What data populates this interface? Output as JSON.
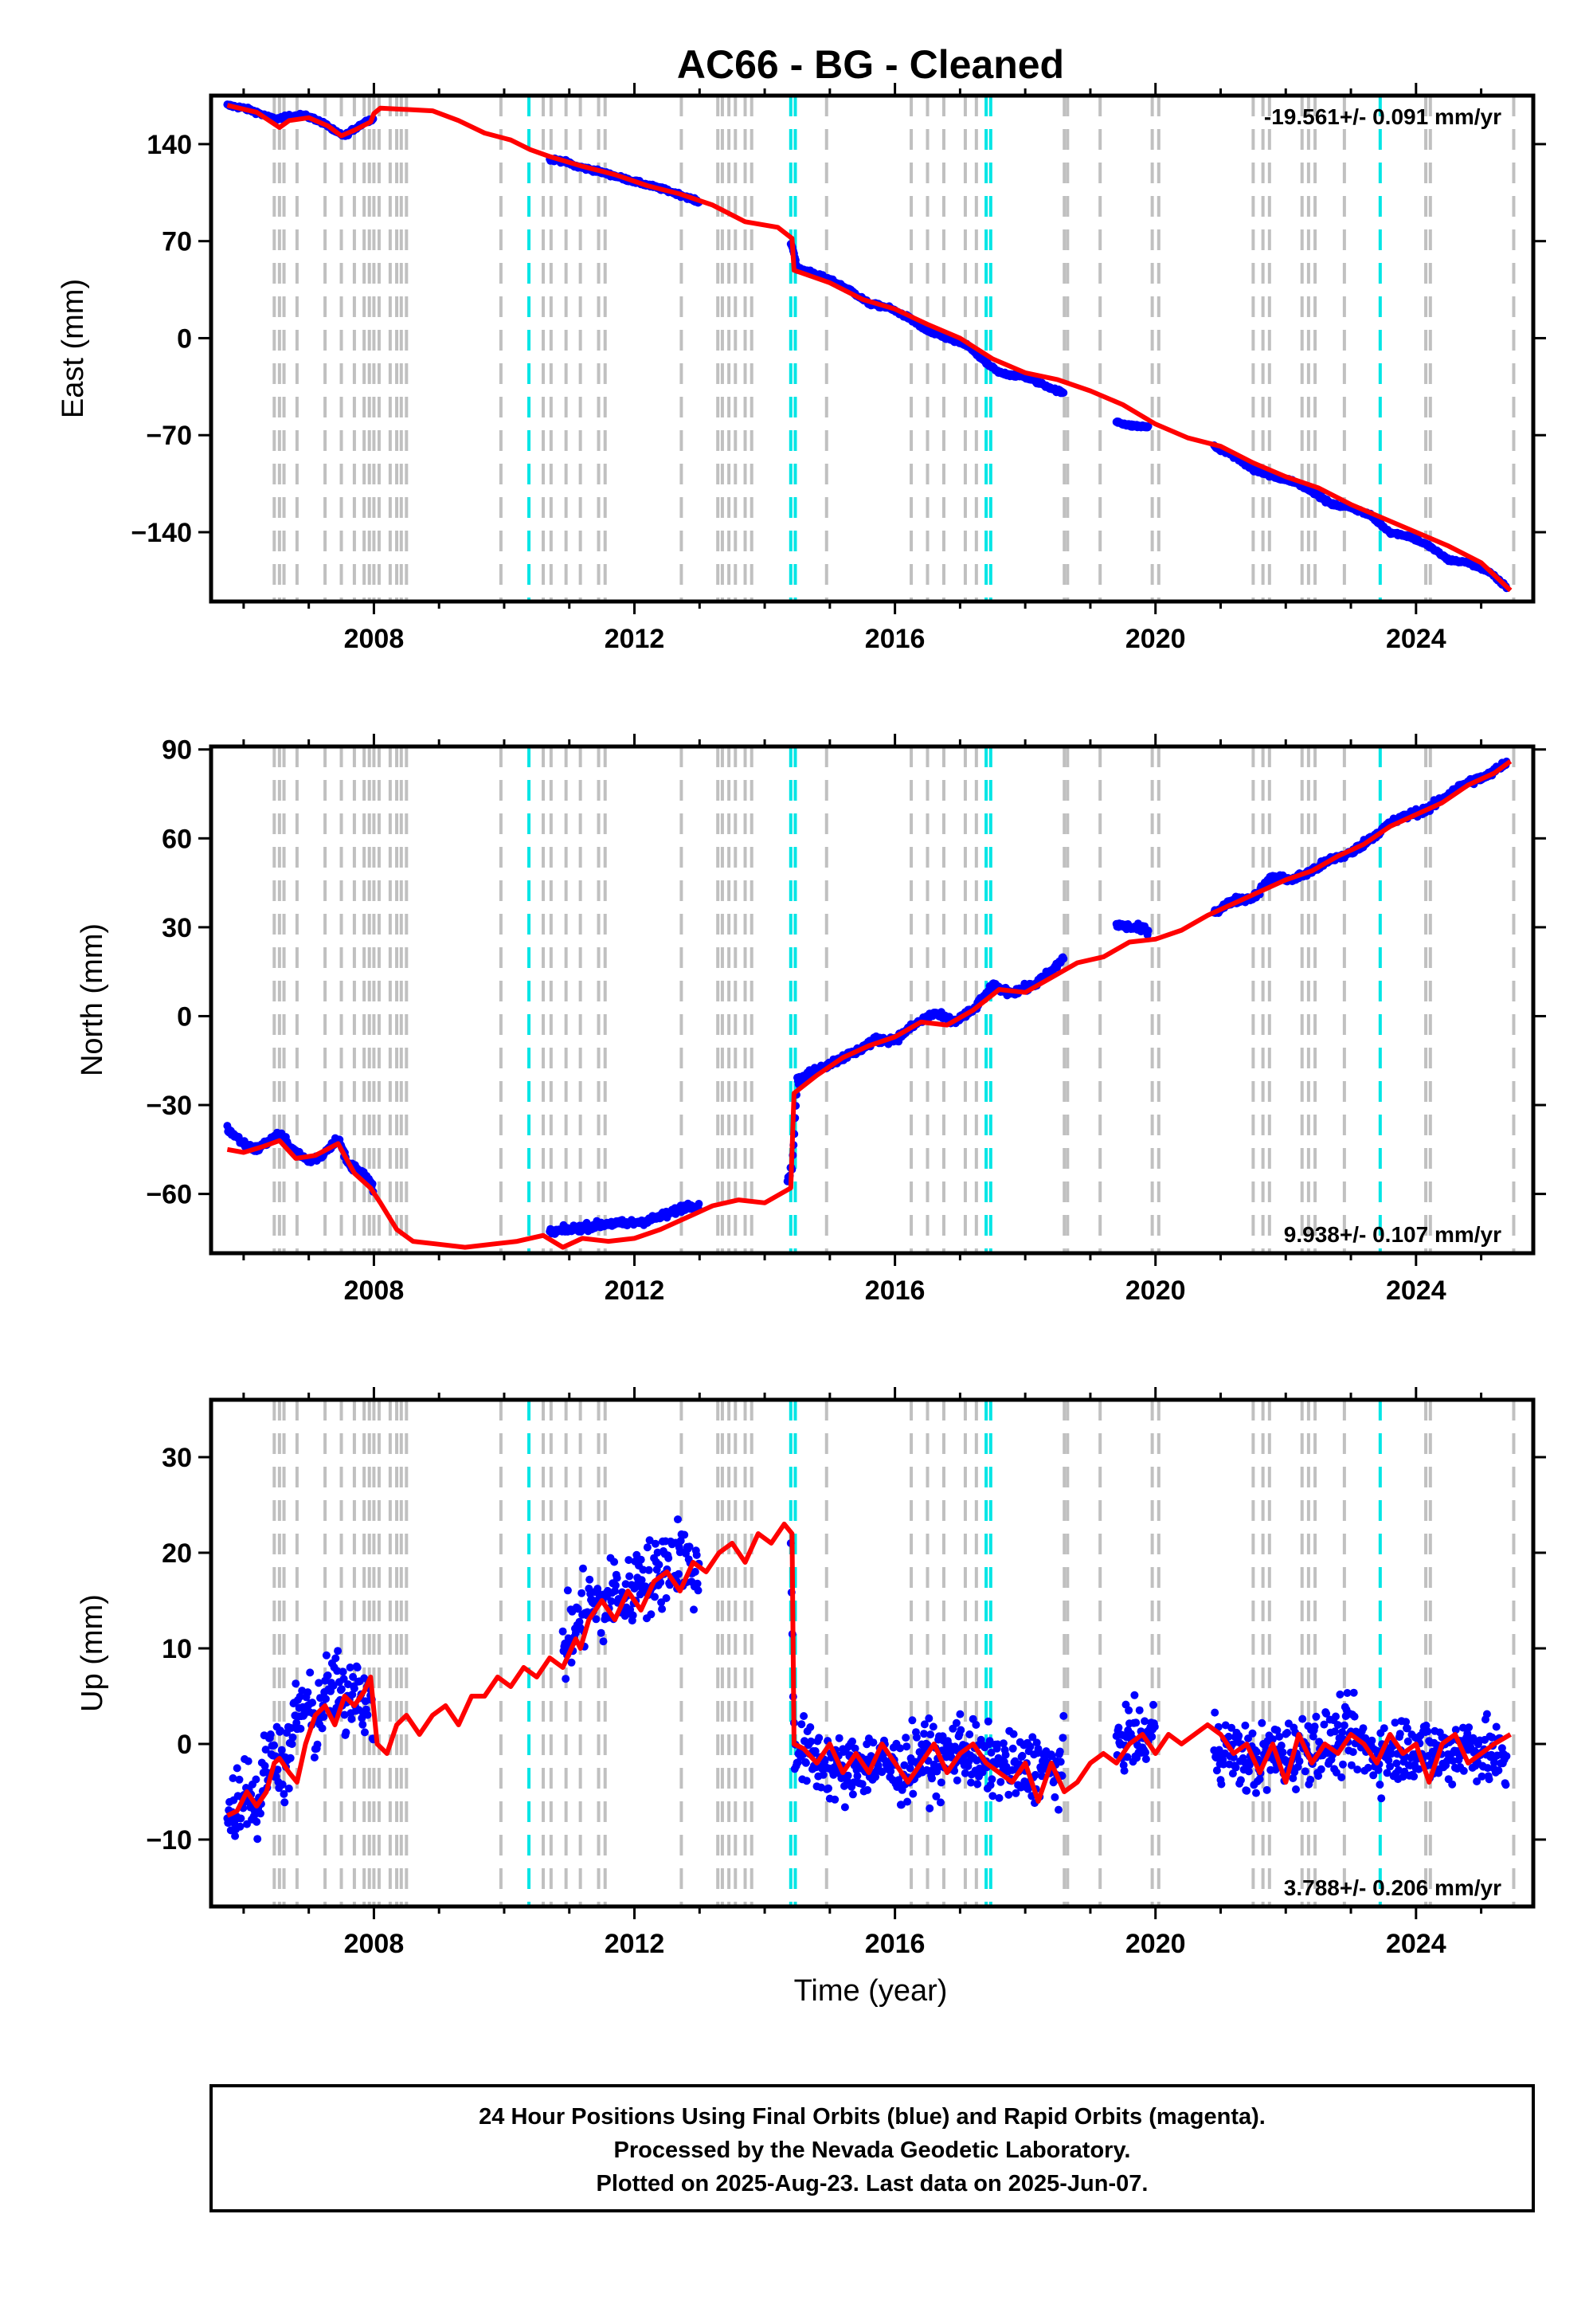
{
  "chart_data": {
    "type": "scatter",
    "title": "AC66  - BG - Cleaned",
    "xlabel": "Time (year)",
    "x_ticks": [
      "2008",
      "2012",
      "2016",
      "2020",
      "2024"
    ],
    "xlim": [
      2005.5,
      2025.8
    ],
    "colors": {
      "data": "#0000ff",
      "model": "#ff0000",
      "equipment_change": "#c0c0c0",
      "earthquake": "#00e5e5"
    },
    "equipment_change_lines": [
      2006.47,
      2006.55,
      2006.62,
      2006.82,
      2007.25,
      2007.5,
      2007.7,
      2007.85,
      2007.93,
      2008.0,
      2008.08,
      2008.25,
      2008.35,
      2008.42,
      2008.5,
      2009.95,
      2010.6,
      2010.72,
      2010.95,
      2011.17,
      2011.45,
      2011.55,
      2012.72,
      2013.28,
      2013.35,
      2013.45,
      2013.55,
      2013.7,
      2013.8,
      2014.95,
      2016.25,
      2016.5,
      2016.75,
      2017.08,
      2017.25,
      2018.6,
      2018.65,
      2019.15,
      2019.95,
      2020.05,
      2021.5,
      2021.65,
      2021.75,
      2022.25,
      2022.35,
      2022.45,
      2022.9,
      2024.15,
      2024.22,
      2025.5
    ],
    "earthquake_lines": [
      2010.38,
      2014.4,
      2014.47,
      2017.4,
      2017.47,
      2023.45
    ],
    "panels": [
      {
        "id": "east",
        "ylabel": "East (mm)",
        "ylim": [
          -190,
          175
        ],
        "y_ticks": [
          "140",
          "70",
          "0",
          "−70",
          "−140"
        ],
        "y_tick_values": [
          140,
          70,
          0,
          -70,
          -140
        ],
        "rate_text": "-19.561+/- 0.091 mm/yr",
        "rate_position": "top-right",
        "data_segments": [
          {
            "x": [
              2005.75,
              2006.0,
              2006.2,
              2006.35,
              2006.5,
              2006.7,
              2006.9,
              2007.1,
              2007.3,
              2007.4,
              2007.55,
              2007.7,
              2007.9,
              2008.0
            ],
            "y": [
              168,
              166,
              163,
              160,
              158,
              160,
              161,
              158,
              153,
              149,
              146,
              151,
              157,
              158
            ]
          },
          {
            "x": [
              2010.7,
              2010.9,
              2011.1,
              2011.4,
              2011.7,
              2012.0,
              2012.4,
              2012.8,
              2013.0
            ],
            "y": [
              129,
              128,
              124,
              121,
              117,
              113,
              108,
              102,
              98
            ]
          },
          {
            "x": [
              2014.4,
              2014.45,
              2014.5,
              2014.7,
              2015.0,
              2015.3,
              2015.6,
              2015.9,
              2016.2,
              2016.5,
              2016.8,
              2017.1,
              2017.4,
              2017.6,
              2018.0,
              2018.3,
              2018.6
            ],
            "y": [
              68,
              62,
              50,
              48,
              42,
              35,
              25,
              22,
              15,
              5,
              0,
              -5,
              -18,
              -25,
              -28,
              -34,
              -40
            ]
          },
          {
            "x": [
              2019.4,
              2019.6,
              2019.9
            ],
            "y": [
              -60,
              -63,
              -64
            ]
          },
          {
            "x": [
              2020.9,
              2021.2,
              2021.5,
              2021.8,
              2022.1,
              2022.4,
              2022.7,
              2023.0,
              2023.3,
              2023.6,
              2023.9,
              2024.2,
              2024.5,
              2024.8,
              2025.1,
              2025.4
            ],
            "y": [
              -78,
              -85,
              -95,
              -100,
              -103,
              -110,
              -120,
              -122,
              -128,
              -140,
              -143,
              -150,
              -160,
              -162,
              -168,
              -180
            ]
          }
        ],
        "model": {
          "x": [
            2005.75,
            2006.2,
            2006.55,
            2006.7,
            2007.0,
            2007.3,
            2007.5,
            2007.7,
            2007.95,
            2008.0,
            2008.1,
            2008.5,
            2008.9,
            2009.3,
            2009.7,
            2010.1,
            2010.4,
            2010.7,
            2011.2,
            2011.7,
            2012.2,
            2012.7,
            2013.2,
            2013.7,
            2014.2,
            2014.42,
            2014.45,
            2015.0,
            2015.5,
            2016.0,
            2016.5,
            2017.0,
            2017.5,
            2018.0,
            2018.5,
            2019.0,
            2019.5,
            2020.0,
            2020.5,
            2021.0,
            2021.5,
            2022.0,
            2022.5,
            2023.0,
            2023.5,
            2024.0,
            2024.5,
            2025.0,
            2025.45
          ],
          "y": [
            168,
            163,
            152,
            157,
            159,
            153,
            146,
            150,
            156,
            162,
            166,
            165,
            164,
            157,
            148,
            143,
            136,
            131,
            124,
            118,
            110,
            104,
            96,
            84,
            80,
            72,
            49,
            40,
            28,
            21,
            10,
            0,
            -15,
            -25,
            -30,
            -38,
            -48,
            -62,
            -72,
            -78,
            -90,
            -100,
            -108,
            -120,
            -130,
            -140,
            -150,
            -162,
            -182
          ]
        }
      },
      {
        "id": "north",
        "ylabel": "North (mm)",
        "ylim": [
          -80,
          91
        ],
        "y_ticks": [
          "90",
          "60",
          "30",
          "0",
          "−30",
          "−60"
        ],
        "y_tick_values": [
          90,
          60,
          30,
          0,
          -30,
          -60
        ],
        "rate_text": "9.938+/- 0.107 mm/yr",
        "rate_position": "bottom-right",
        "data_segments": [
          {
            "x": [
              2005.75,
              2006.0,
              2006.2,
              2006.4,
              2006.55,
              2006.8,
              2007.0,
              2007.2,
              2007.45,
              2007.6,
              2007.8,
              2008.0
            ],
            "y": [
              -38,
              -43,
              -45,
              -42,
              -40,
              -46,
              -49,
              -47,
              -41,
              -50,
              -52,
              -58
            ]
          },
          {
            "x": [
              2010.7,
              2011.0,
              2011.3,
              2011.6,
              2011.9,
              2012.2,
              2012.5,
              2012.8,
              2013.0
            ],
            "y": [
              -73,
              -72,
              -71,
              -70,
              -70,
              -69,
              -67,
              -64,
              -64
            ]
          },
          {
            "x": [
              2014.35,
              2014.42,
              2014.5,
              2014.8,
              2015.1,
              2015.4,
              2015.7,
              2016.0,
              2016.3,
              2016.6,
              2016.9,
              2017.2,
              2017.5,
              2017.8,
              2018.1,
              2018.4,
              2018.6
            ],
            "y": [
              -55,
              -51,
              -22,
              -18,
              -15,
              -12,
              -8,
              -8,
              -3,
              1,
              -2,
              2,
              10,
              8,
              10,
              15,
              20
            ]
          },
          {
            "x": [
              2019.4,
              2019.6,
              2019.9
            ],
            "y": [
              31,
              30,
              29
            ]
          },
          {
            "x": [
              2020.9,
              2021.2,
              2021.5,
              2021.8,
              2022.1,
              2022.4,
              2022.7,
              2023.0,
              2023.3,
              2023.6,
              2023.9,
              2024.2,
              2024.5,
              2024.8,
              2025.1,
              2025.4
            ],
            "y": [
              35,
              39,
              40,
              47,
              46,
              49,
              53,
              55,
              60,
              65,
              68,
              70,
              75,
              79,
              81,
              86
            ]
          }
        ],
        "model": {
          "x": [
            2005.75,
            2006.0,
            2006.3,
            2006.55,
            2006.8,
            2007.1,
            2007.45,
            2007.7,
            2007.95,
            2008.1,
            2008.35,
            2008.6,
            2009.0,
            2009.4,
            2009.8,
            2010.2,
            2010.6,
            2010.9,
            2011.2,
            2011.6,
            2012.0,
            2012.4,
            2012.8,
            2013.2,
            2013.6,
            2014.0,
            2014.4,
            2014.45,
            2014.8,
            2015.2,
            2015.6,
            2016.0,
            2016.4,
            2016.8,
            2017.2,
            2017.6,
            2018.0,
            2018.4,
            2018.8,
            2019.2,
            2019.6,
            2020.0,
            2020.4,
            2020.8,
            2021.2,
            2021.6,
            2022.0,
            2022.4,
            2022.8,
            2023.2,
            2023.6,
            2024.0,
            2024.4,
            2024.8,
            2025.2,
            2025.45
          ],
          "y": [
            -45,
            -46,
            -44,
            -42,
            -48,
            -47,
            -43,
            -53,
            -58,
            -63,
            -72,
            -76,
            -77,
            -78,
            -77,
            -76,
            -74,
            -78,
            -75,
            -76,
            -75,
            -72,
            -68,
            -64,
            -62,
            -63,
            -58,
            -26,
            -20,
            -14,
            -10,
            -7,
            -2,
            -3,
            2,
            9,
            8,
            13,
            18,
            20,
            25,
            26,
            29,
            34,
            38,
            42,
            46,
            49,
            54,
            58,
            64,
            68,
            72,
            78,
            82,
            86
          ]
        }
      },
      {
        "id": "up",
        "ylabel": "Up (mm)",
        "ylim": [
          -17,
          36
        ],
        "y_ticks": [
          "30",
          "20",
          "10",
          "0",
          "−10"
        ],
        "y_tick_values": [
          30,
          20,
          10,
          0,
          -10
        ],
        "rate_text": "3.788+/- 0.206 mm/yr",
        "rate_position": "bottom-right",
        "data_segments": [
          {
            "x": [
              2005.75,
              2005.9,
              2006.05,
              2006.2,
              2006.35,
              2006.5,
              2006.65,
              2006.8,
              2006.95,
              2007.1,
              2007.25,
              2007.4,
              2007.55,
              2007.7,
              2007.85,
              2008.0
            ],
            "y": [
              -8,
              -6,
              -4,
              -7,
              -2,
              0,
              -3,
              3,
              4,
              2,
              5,
              6,
              4,
              7,
              5,
              3
            ],
            "spread": 4
          },
          {
            "x": [
              2010.9,
              2011.1,
              2011.3,
              2011.5,
              2011.7,
              2011.9,
              2012.1,
              2012.3,
              2012.5,
              2012.7,
              2012.9,
              2013.0
            ],
            "y": [
              10,
              12,
              15,
              14,
              16,
              15,
              18,
              17,
              19,
              20,
              18,
              17
            ],
            "spread": 4
          },
          {
            "x": [
              2014.4,
              2014.45,
              2014.6,
              2014.9,
              2015.2,
              2015.5,
              2015.8,
              2016.1,
              2016.4,
              2016.7,
              2017.0,
              2017.3,
              2017.6,
              2017.9,
              2018.2,
              2018.5,
              2018.6
            ],
            "y": [
              23,
              0,
              -1,
              -2,
              -3,
              -2,
              -2,
              -3,
              -1,
              -2,
              0,
              -2,
              -2,
              -3,
              -2,
              -3,
              -2
            ],
            "spread": 3.5
          },
          {
            "x": [
              2019.4,
              2019.6,
              2019.8,
              2020.0
            ],
            "y": [
              0,
              1,
              0,
              2
            ],
            "spread": 3
          },
          {
            "x": [
              2020.9,
              2021.2,
              2021.5,
              2021.8,
              2022.1,
              2022.4,
              2022.7,
              2023.0,
              2023.3,
              2023.6,
              2023.9,
              2024.2,
              2024.5,
              2024.8,
              2025.1,
              2025.4
            ],
            "y": [
              0,
              -1,
              -2,
              -1,
              -1,
              0,
              0,
              1,
              -1,
              -1,
              0,
              -1,
              -1,
              0,
              -1,
              -2
            ],
            "spread": 3.5
          }
        ],
        "model": {
          "x": [
            2005.75,
            2005.9,
            2006.05,
            2006.2,
            2006.35,
            2006.47,
            2006.55,
            2006.7,
            2006.82,
            2006.95,
            2007.1,
            2007.25,
            2007.4,
            2007.55,
            2007.7,
            2007.85,
            2007.95,
            2008.05,
            2008.2,
            2008.35,
            2008.5,
            2008.7,
            2008.9,
            2009.1,
            2009.3,
            2009.5,
            2009.7,
            2009.9,
            2010.1,
            2010.3,
            2010.5,
            2010.7,
            2010.9,
            2011.1,
            2011.17,
            2011.3,
            2011.5,
            2011.7,
            2011.9,
            2012.1,
            2012.3,
            2012.5,
            2012.7,
            2012.9,
            2013.1,
            2013.3,
            2013.5,
            2013.7,
            2013.9,
            2014.1,
            2014.3,
            2014.42,
            2014.45,
            2014.6,
            2014.8,
            2015.0,
            2015.2,
            2015.4,
            2015.6,
            2015.8,
            2016.0,
            2016.2,
            2016.4,
            2016.6,
            2016.8,
            2017.0,
            2017.2,
            2017.4,
            2017.6,
            2017.8,
            2018.0,
            2018.2,
            2018.4,
            2018.6,
            2018.8,
            2019.0,
            2019.2,
            2019.4,
            2019.6,
            2019.8,
            2020.0,
            2020.2,
            2020.4,
            2020.6,
            2020.8,
            2021.0,
            2021.2,
            2021.4,
            2021.6,
            2021.8,
            2022.0,
            2022.2,
            2022.4,
            2022.6,
            2022.8,
            2023.0,
            2023.2,
            2023.4,
            2023.6,
            2023.8,
            2024.0,
            2024.2,
            2024.4,
            2024.6,
            2024.8,
            2025.0,
            2025.2,
            2025.45
          ],
          "y": [
            -7.5,
            -7,
            -5,
            -6.5,
            -5,
            -2,
            -1.5,
            -3,
            -4,
            0,
            3,
            4,
            2,
            5,
            4,
            5.5,
            7,
            0,
            -1,
            2,
            3,
            1,
            3,
            4,
            2,
            5,
            5,
            7,
            6,
            8,
            7,
            9,
            8,
            11,
            10,
            13,
            15,
            13,
            16,
            14,
            17,
            18,
            16,
            19,
            18,
            20,
            21,
            19,
            22,
            21,
            23,
            22,
            0,
            -0.5,
            -2,
            0,
            -3,
            -1,
            -3,
            0,
            -2,
            -4,
            -2,
            0,
            -3,
            -1,
            0,
            -2,
            -3,
            -4,
            -2,
            -6,
            -2,
            -5,
            -4,
            -2,
            -1,
            -2,
            0,
            1,
            -1,
            1,
            0,
            1,
            2,
            1,
            -1,
            0,
            -3,
            0,
            -4,
            1,
            -2,
            0,
            -1,
            1,
            0,
            -2,
            1,
            -1,
            0,
            -4,
            0,
            1,
            -2,
            -1,
            0,
            1
          ]
        }
      }
    ]
  },
  "footer": {
    "line1": "24 Hour Positions Using Final Orbits (blue) and Rapid Orbits (magenta).",
    "line2": "Processed by the Nevada Geodetic Laboratory.",
    "line3": "Plotted on 2025-Aug-23. Last data on 2025-Jun-07."
  }
}
